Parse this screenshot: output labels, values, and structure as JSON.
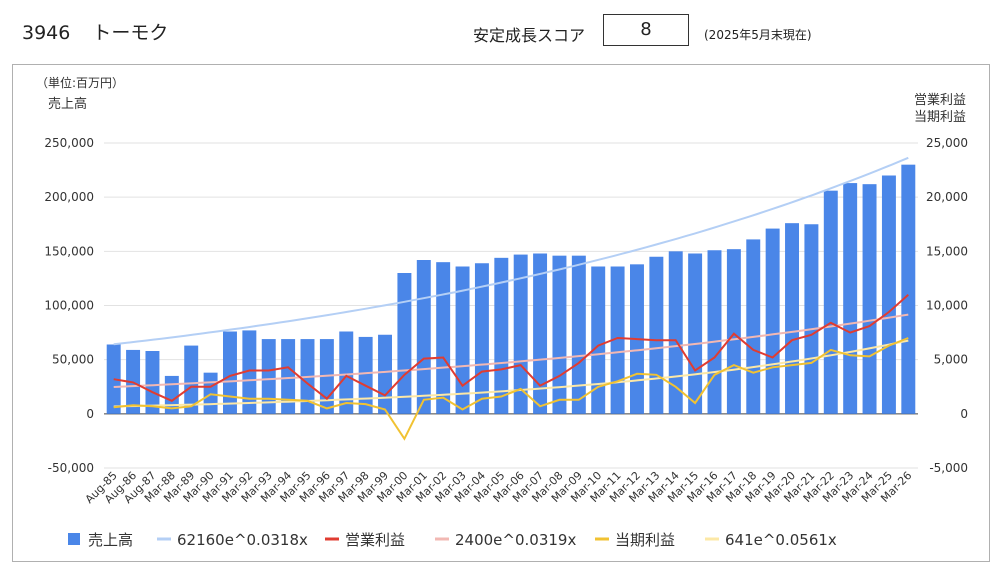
{
  "header": {
    "code": "3946",
    "name": "トーモク",
    "score_label": "安定成長スコア",
    "score_value": "8",
    "score_date": "(2025年5月末現在)"
  },
  "chart_data": {
    "type": "bar",
    "unit_label": "（単位:百万円）",
    "left_axis_title": "売上高",
    "right_axis_title_1": "営業利益",
    "right_axis_title_2": "当期利益",
    "left_ylim": [
      -50000,
      250000
    ],
    "right_ylim": [
      -5000,
      25000
    ],
    "left_ticks": [
      "250,000",
      "200,000",
      "150,000",
      "100,000",
      "50,000",
      "0",
      "-50,000"
    ],
    "right_ticks": [
      "25,000",
      "20,000",
      "15,000",
      "10,000",
      "5,000",
      "0",
      "-5,000"
    ],
    "categories": [
      "Aug-85",
      "Aug-86",
      "Aug-87",
      "Mar-88",
      "Mar-89",
      "Mar-90",
      "Mar-91",
      "Mar-92",
      "Mar-93",
      "Mar-94",
      "Mar-95",
      "Mar-96",
      "Mar-97",
      "Mar-98",
      "Mar-99",
      "Mar-00",
      "Mar-01",
      "Mar-02",
      "Mar-03",
      "Mar-04",
      "Mar-05",
      "Mar-06",
      "Mar-07",
      "Mar-08",
      "Mar-09",
      "Mar-10",
      "Mar-11",
      "Mar-12",
      "Mar-13",
      "Mar-14",
      "Mar-15",
      "Mar-16",
      "Mar-17",
      "Mar-18",
      "Mar-19",
      "Mar-20",
      "Mar-21",
      "Mar-22",
      "Mar-23",
      "Mar-24",
      "Mar-25",
      "Mar-26"
    ],
    "series": [
      {
        "name": "売上高",
        "kind": "bar",
        "axis": "left",
        "color": "#4a86e8",
        "values": [
          64000,
          59000,
          58000,
          35000,
          63000,
          38000,
          76000,
          77000,
          69000,
          69000,
          69000,
          69000,
          76000,
          71000,
          73000,
          130000,
          142000,
          140000,
          136000,
          139000,
          144000,
          147000,
          148000,
          146000,
          146000,
          136000,
          136000,
          138000,
          145000,
          150000,
          148000,
          151000,
          152000,
          161000,
          171000,
          176000,
          175000,
          206000,
          213000,
          212000,
          220000,
          230000
        ]
      },
      {
        "name": "62160e^0.0318x",
        "kind": "trend",
        "axis": "left",
        "color": "#b4cff5",
        "a": 62160,
        "b": 0.0318
      },
      {
        "name": "営業利益",
        "kind": "line",
        "axis": "right",
        "color": "#e03c31",
        "values": [
          3200,
          2900,
          2000,
          1200,
          2500,
          2500,
          3500,
          4000,
          4000,
          4300,
          2800,
          1400,
          3500,
          2600,
          1700,
          3600,
          5100,
          5200,
          2600,
          3900,
          4100,
          4500,
          2600,
          3500,
          4700,
          6300,
          7000,
          6900,
          6800,
          6800,
          4000,
          5200,
          7400,
          5900,
          5200,
          6800,
          7300,
          8400,
          7500,
          8100,
          9400,
          11000
        ]
      },
      {
        "name": "2400e^0.0319x",
        "kind": "trend",
        "axis": "right",
        "color": "#f2b8b3",
        "a": 2400,
        "b": 0.0319
      },
      {
        "name": "当期利益",
        "kind": "line",
        "axis": "right",
        "color": "#f1c232",
        "values": [
          600,
          800,
          700,
          500,
          700,
          1800,
          1600,
          1400,
          1400,
          1300,
          1200,
          500,
          1000,
          900,
          400,
          -2300,
          1300,
          1500,
          400,
          1400,
          1600,
          2300,
          700,
          1300,
          1300,
          2500,
          3000,
          3700,
          3600,
          2500,
          1000,
          3600,
          4500,
          3800,
          4300,
          4500,
          4700,
          5900,
          5400,
          5300,
          6300,
          7000
        ]
      },
      {
        "name": "641e^0.0561x",
        "kind": "trend",
        "axis": "right",
        "color": "#fce8a6",
        "a": 641,
        "b": 0.0561
      }
    ]
  }
}
